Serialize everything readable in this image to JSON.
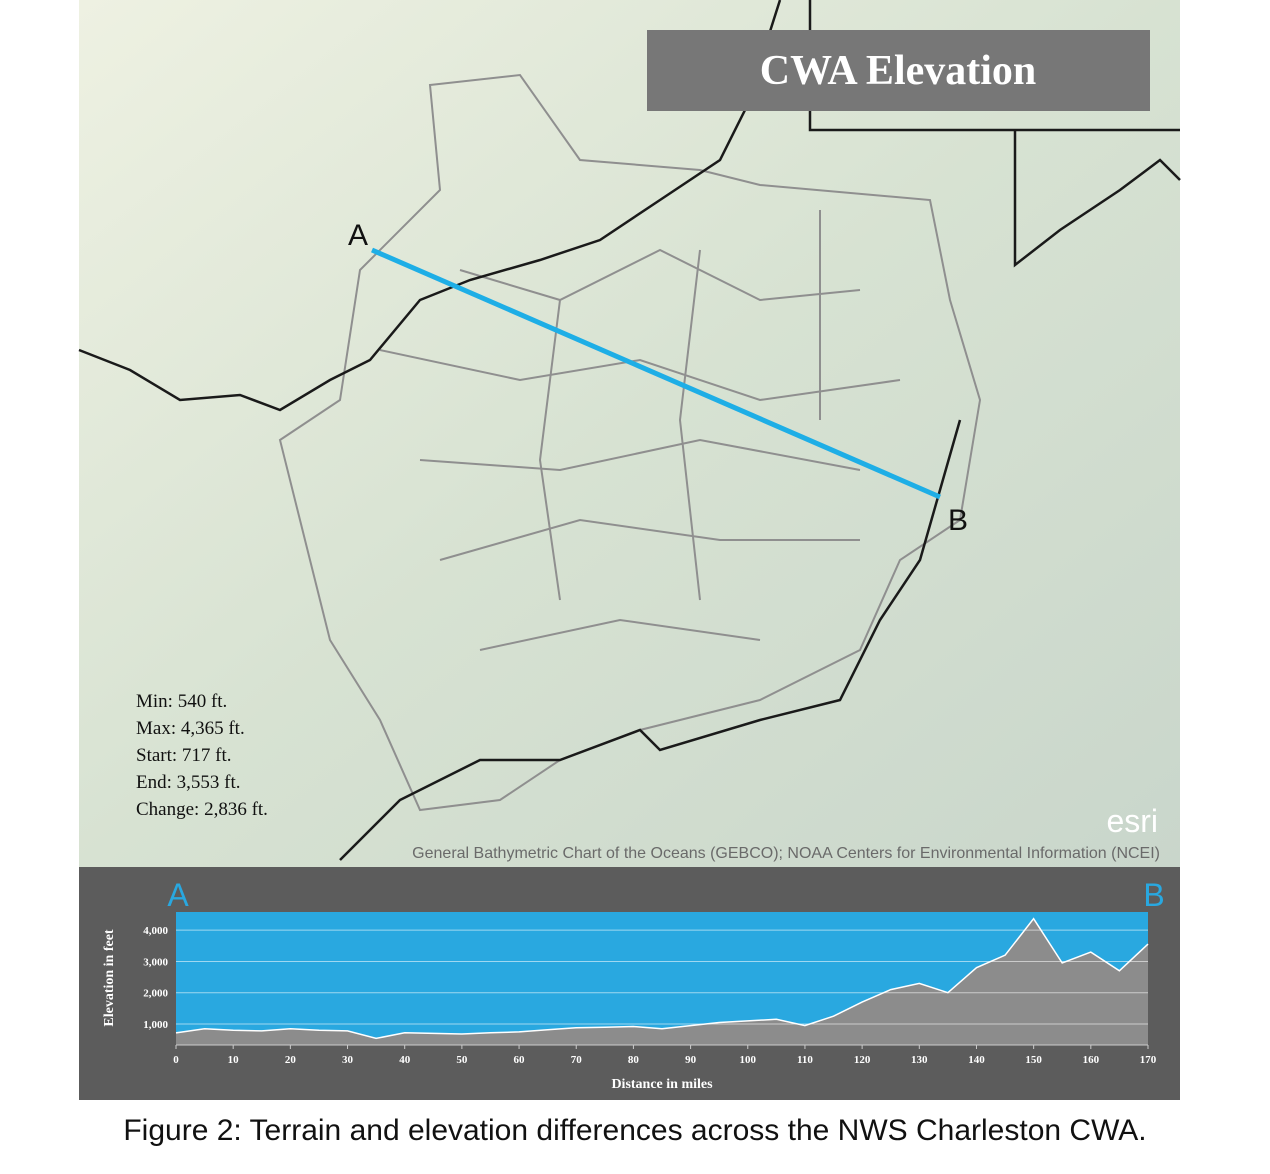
{
  "map": {
    "title": "CWA Elevation",
    "point_a": "A",
    "point_b": "B",
    "stats": [
      "Min: 540 ft.",
      "Max: 4,365 ft.",
      "Start: 717 ft.",
      "End: 3,553 ft.",
      "Change: 2,836 ft."
    ],
    "logo": "esri",
    "attribution": "General Bathymetric Chart of the Oceans (GEBCO); NOAA Centers for Environmental Information (NCEI)"
  },
  "chart_data": {
    "type": "area",
    "ylabel": "Elevation in feet",
    "xlabel": "Distance in miles",
    "start_label": "A",
    "end_label": "B",
    "x": [
      0,
      5,
      10,
      15,
      20,
      25,
      30,
      35,
      40,
      45,
      50,
      55,
      60,
      65,
      70,
      75,
      80,
      85,
      90,
      95,
      100,
      105,
      110,
      115,
      120,
      125,
      130,
      135,
      140,
      145,
      150,
      155,
      160,
      165,
      170
    ],
    "values": [
      717,
      850,
      800,
      780,
      850,
      800,
      780,
      540,
      720,
      700,
      680,
      720,
      750,
      820,
      880,
      900,
      920,
      850,
      950,
      1050,
      1100,
      1150,
      950,
      1250,
      1700,
      2100,
      2300,
      2000,
      2800,
      3200,
      4365,
      2950,
      3300,
      2700,
      3553
    ],
    "color": "#8c8c8c",
    "background": "#29a8e0",
    "xlim": [
      0,
      170
    ],
    "ylim": [
      330,
      4580
    ],
    "xticks": [
      0,
      10,
      20,
      30,
      40,
      50,
      60,
      70,
      80,
      90,
      100,
      110,
      120,
      130,
      140,
      150,
      160,
      170
    ],
    "yticks": [
      {
        "value": 1000,
        "label": "1,000"
      },
      {
        "value": 2000,
        "label": "2,000"
      },
      {
        "value": 3000,
        "label": "3,000"
      },
      {
        "value": 4000,
        "label": "4,000"
      }
    ],
    "grid": true
  },
  "caption": "Figure 2:  Terrain and elevation differences across the NWS Charleston CWA."
}
